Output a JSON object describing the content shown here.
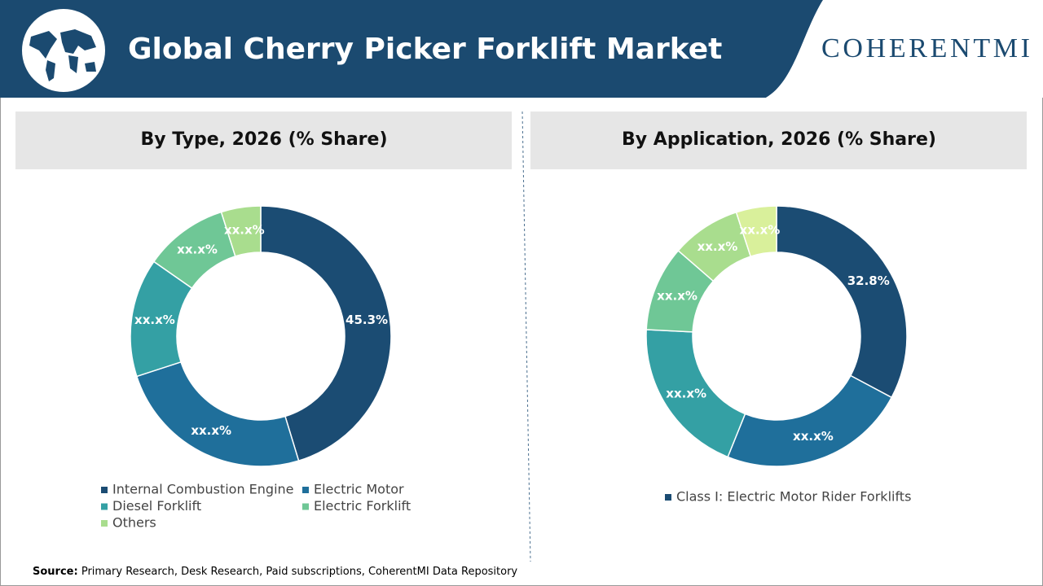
{
  "header": {
    "title": "Global Cherry Picker Forklift Market",
    "logo": "COHERENTMI"
  },
  "chart_data": [
    {
      "type": "donut",
      "title": "By Type, 2026 (% Share)",
      "categories": [
        "Internal Combustion Engine",
        "Electric Motor",
        "Diesel Forklift",
        "Electric Forklift",
        "Others"
      ],
      "values": [
        45.3,
        24.7,
        14.7,
        10.4,
        4.9
      ],
      "value_labels": [
        "45.3%",
        "xx.x%",
        "xx.x%",
        "xx.x%",
        "xx.x%"
      ],
      "colors": [
        "#1b4c73",
        "#1f6f9b",
        "#34a0a4",
        "#6fc796",
        "#a9dd8e"
      ]
    },
    {
      "type": "donut",
      "title": "By Application, 2026 (% Share)",
      "categories": [
        "Class I: Electric Motor Rider Forklifts",
        null,
        null,
        null,
        null,
        null
      ],
      "values": [
        32.8,
        23.3,
        19.7,
        10.6,
        8.6,
        5.0
      ],
      "value_labels": [
        "32.8%",
        "xx.x%",
        "xx.x%",
        "xx.x%",
        "xx.x%",
        "xx.x%"
      ],
      "colors": [
        "#1b4c73",
        "#1f6f9b",
        "#34a0a4",
        "#6fc796",
        "#a9dd8e",
        "#d9f09b"
      ]
    }
  ],
  "footer": {
    "source_label": "Source:",
    "source_text": "Primary Research, Desk Research, Paid subscriptions, CoherentMI Data Repository"
  }
}
